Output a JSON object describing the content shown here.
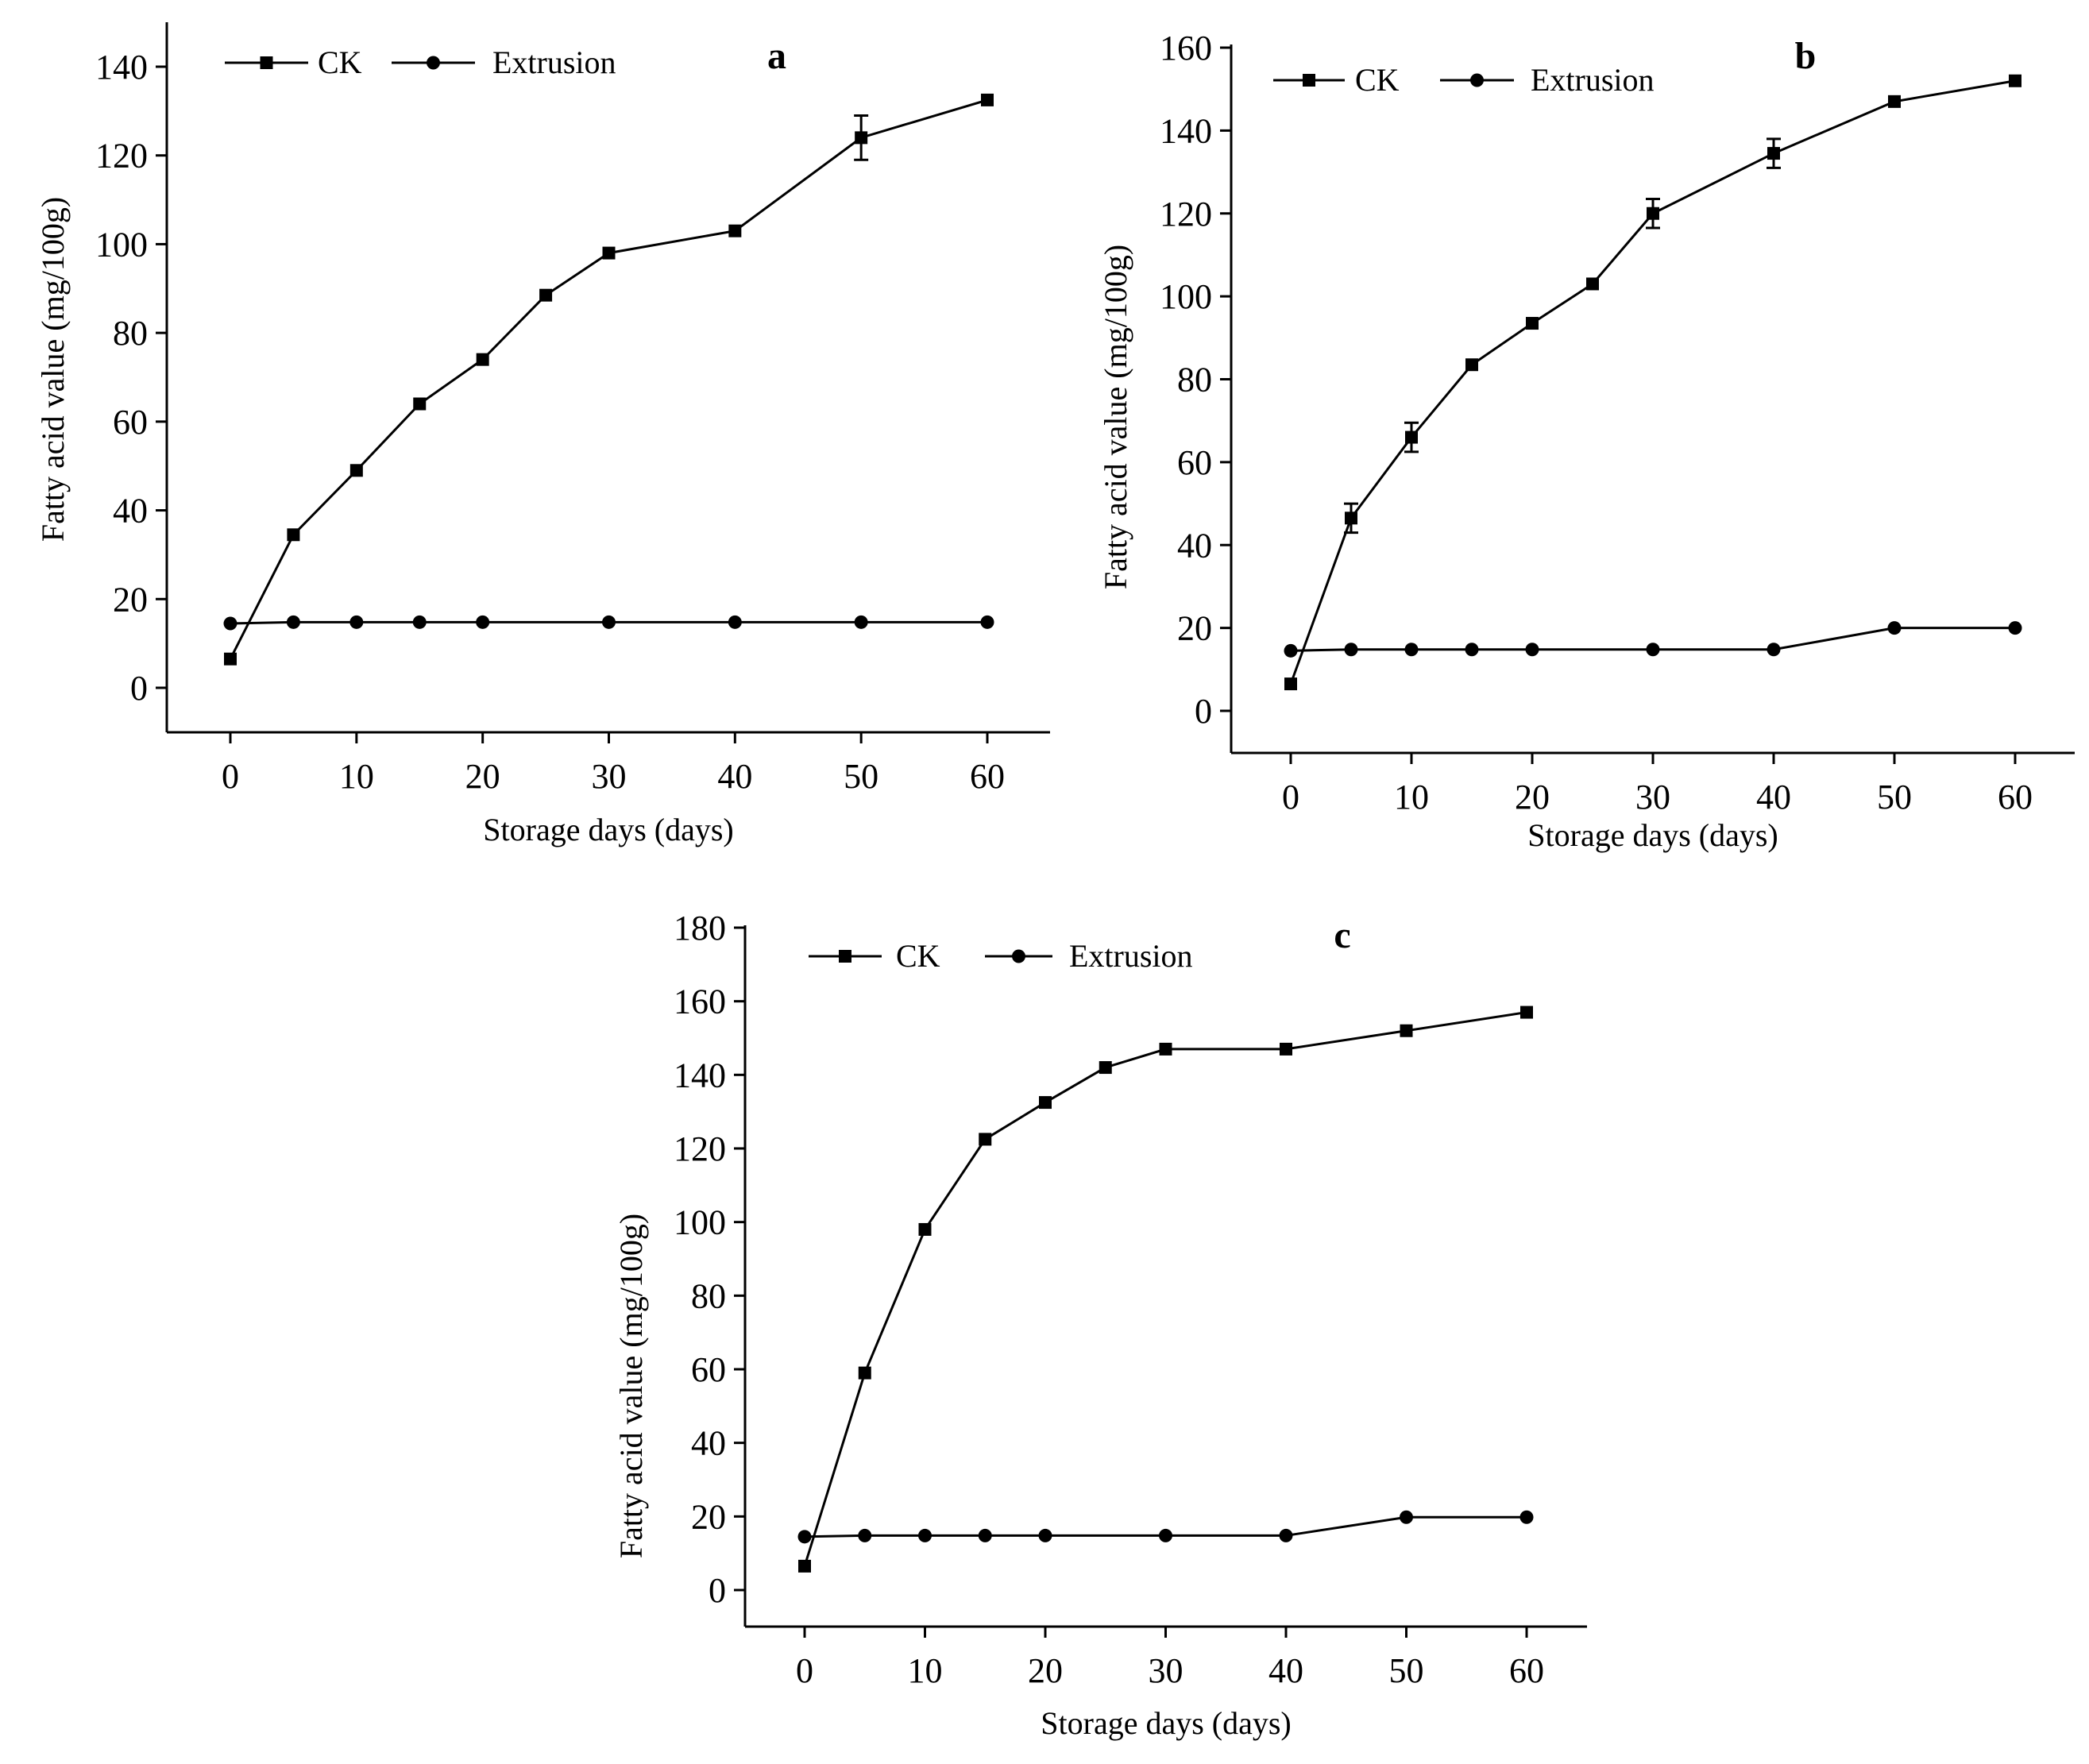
{
  "figure": {
    "description_label": "Fatty acid value during storage",
    "colors": {
      "line": "#000000",
      "background": "#ffffff"
    }
  },
  "chart_data": [
    {
      "panel": "a",
      "type": "line",
      "xlabel": "Storage days (days)",
      "ylabel": "Fatty acid value (mg/100g)",
      "xlim": [
        -5,
        65
      ],
      "ylim": [
        -10,
        150
      ],
      "xticks": [
        0,
        10,
        20,
        30,
        40,
        50,
        60
      ],
      "yticks": [
        0,
        20,
        40,
        60,
        80,
        100,
        120,
        140
      ],
      "legend_position": "top-left",
      "series": [
        {
          "name": "CK",
          "marker": "square",
          "x": [
            0,
            5,
            10,
            15,
            20,
            25,
            30,
            40,
            50,
            60
          ],
          "values": [
            6.5,
            34.5,
            49,
            64,
            74,
            88.5,
            98,
            103,
            124,
            132.5
          ],
          "errors": [
            0,
            0,
            0,
            0,
            0,
            0,
            0,
            0,
            5,
            0
          ]
        },
        {
          "name": "Extrusion",
          "marker": "circle",
          "x": [
            0,
            5,
            10,
            15,
            20,
            30,
            40,
            50,
            60
          ],
          "values": [
            14.5,
            14.8,
            14.8,
            14.8,
            14.8,
            14.8,
            14.8,
            14.8,
            14.8
          ],
          "errors": [
            0,
            0,
            0,
            0,
            0,
            0,
            0,
            0,
            0
          ]
        }
      ]
    },
    {
      "panel": "b",
      "type": "line",
      "xlabel": "Storage days (days)",
      "ylabel": "Fatty acid value (mg/100g)",
      "xlim": [
        -5,
        65
      ],
      "ylim": [
        -10,
        160
      ],
      "xticks": [
        0,
        10,
        20,
        30,
        40,
        50,
        60
      ],
      "yticks": [
        0,
        20,
        40,
        60,
        80,
        100,
        120,
        140,
        160
      ],
      "legend_position": "top-left",
      "series": [
        {
          "name": "CK",
          "marker": "square",
          "x": [
            0,
            5,
            10,
            15,
            20,
            25,
            30,
            40,
            50,
            60
          ],
          "values": [
            6.5,
            46.5,
            66,
            83.5,
            93.5,
            103,
            120,
            134.5,
            147,
            152
          ],
          "errors": [
            0,
            3.5,
            3.5,
            0,
            0,
            0,
            3.5,
            3.5,
            0,
            0
          ]
        },
        {
          "name": "Extrusion",
          "marker": "circle",
          "x": [
            0,
            5,
            10,
            15,
            20,
            30,
            40,
            50,
            60
          ],
          "values": [
            14.5,
            14.8,
            14.8,
            14.8,
            14.8,
            14.8,
            14.8,
            20,
            20
          ],
          "errors": [
            0,
            0,
            0,
            0,
            0,
            0,
            0,
            0,
            0
          ]
        }
      ]
    },
    {
      "panel": "c",
      "type": "line",
      "xlabel": "Storage days (days)",
      "ylabel": "Fatty acid value (mg/100g)",
      "xlim": [
        -5,
        65
      ],
      "ylim": [
        -10,
        180
      ],
      "xticks": [
        0,
        10,
        20,
        30,
        40,
        50,
        60
      ],
      "yticks": [
        0,
        20,
        40,
        60,
        80,
        100,
        120,
        140,
        160,
        180
      ],
      "legend_position": "top-left",
      "series": [
        {
          "name": "CK",
          "marker": "square",
          "x": [
            0,
            5,
            10,
            15,
            20,
            25,
            30,
            40,
            50,
            60
          ],
          "values": [
            6.5,
            59,
            98,
            122.5,
            132.5,
            142,
            147,
            147,
            152,
            157
          ],
          "errors": [
            0,
            0,
            0,
            0,
            0,
            0,
            0,
            0,
            0,
            0
          ]
        },
        {
          "name": "Extrusion",
          "marker": "circle",
          "x": [
            0,
            5,
            10,
            15,
            20,
            30,
            40,
            50,
            60
          ],
          "values": [
            14.5,
            14.8,
            14.8,
            14.8,
            14.8,
            14.8,
            14.8,
            19.8,
            19.8
          ],
          "errors": [
            0,
            0,
            0,
            0,
            0,
            0,
            0,
            0,
            0
          ]
        }
      ]
    }
  ]
}
